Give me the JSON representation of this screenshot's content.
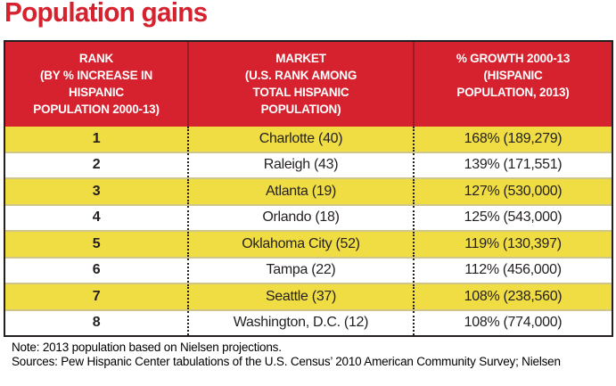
{
  "title": "Population gains",
  "table": {
    "headers": {
      "rank": "RANK\n(BY % INCREASE IN\nHISPANIC\nPOPULATION 2000-13)",
      "market": "MARKET\n(U.S. RANK AMONG\nTOTAL HISPANIC\nPOPULATION)",
      "growth": "% GROWTH 2000-13\n(HISPANIC\nPOPULATION, 2013)"
    },
    "rows": [
      {
        "rank": "1",
        "market": "Charlotte (40)",
        "growth": "168% (189,279)"
      },
      {
        "rank": "2",
        "market": "Raleigh (43)",
        "growth": "139% (171,551)"
      },
      {
        "rank": "3",
        "market": "Atlanta (19)",
        "growth": "127% (530,000)"
      },
      {
        "rank": "4",
        "market": "Orlando (18)",
        "growth": "125% (543,000)"
      },
      {
        "rank": "5",
        "market": "Oklahoma City (52)",
        "growth": "119% (130,397)"
      },
      {
        "rank": "6",
        "market": "Tampa (22)",
        "growth": "112% (456,000)"
      },
      {
        "rank": "7",
        "market": "Seattle (37)",
        "growth": "108% (238,560)"
      },
      {
        "rank": "8",
        "market": "Washington, D.C. (12)",
        "growth": "108% (774,000)"
      }
    ]
  },
  "notes": {
    "note": "Note: 2013 population based on Nielsen projections.",
    "sources": "Sources: Pew Hispanic Center tabulations of the U.S. Census’ 2010 American Community Survey; Nielsen"
  },
  "colors": {
    "accent_red": "#d6222e",
    "row_yellow": "#efdd43",
    "header_divider_red": "#9e1b24",
    "row_divider_tan": "#cfc68c",
    "border_black": "#231f20"
  },
  "chart_data": {
    "type": "table",
    "title": "Population gains",
    "columns": [
      "RANK (BY % INCREASE IN HISPANIC POPULATION 2000-13)",
      "MARKET (U.S. RANK AMONG TOTAL HISPANIC POPULATION)",
      "% GROWTH 2000-13 (HISPANIC POPULATION, 2013)"
    ],
    "rows": [
      {
        "rank": 1,
        "market": "Charlotte",
        "us_hispanic_rank": 40,
        "growth_pct": 168,
        "hispanic_population_2013": 189279
      },
      {
        "rank": 2,
        "market": "Raleigh",
        "us_hispanic_rank": 43,
        "growth_pct": 139,
        "hispanic_population_2013": 171551
      },
      {
        "rank": 3,
        "market": "Atlanta",
        "us_hispanic_rank": 19,
        "growth_pct": 127,
        "hispanic_population_2013": 530000
      },
      {
        "rank": 4,
        "market": "Orlando",
        "us_hispanic_rank": 18,
        "growth_pct": 125,
        "hispanic_population_2013": 543000
      },
      {
        "rank": 5,
        "market": "Oklahoma City",
        "us_hispanic_rank": 52,
        "growth_pct": 119,
        "hispanic_population_2013": 130397
      },
      {
        "rank": 6,
        "market": "Tampa",
        "us_hispanic_rank": 22,
        "growth_pct": 112,
        "hispanic_population_2013": 456000
      },
      {
        "rank": 7,
        "market": "Seattle",
        "us_hispanic_rank": 37,
        "growth_pct": 108,
        "hispanic_population_2013": 238560
      },
      {
        "rank": 8,
        "market": "Washington, D.C.",
        "us_hispanic_rank": 12,
        "growth_pct": 108,
        "hispanic_population_2013": 774000
      }
    ],
    "notes": [
      "Note: 2013 population based on Nielsen projections.",
      "Sources: Pew Hispanic Center tabulations of the U.S. Census’ 2010 American Community Survey; Nielsen"
    ]
  }
}
